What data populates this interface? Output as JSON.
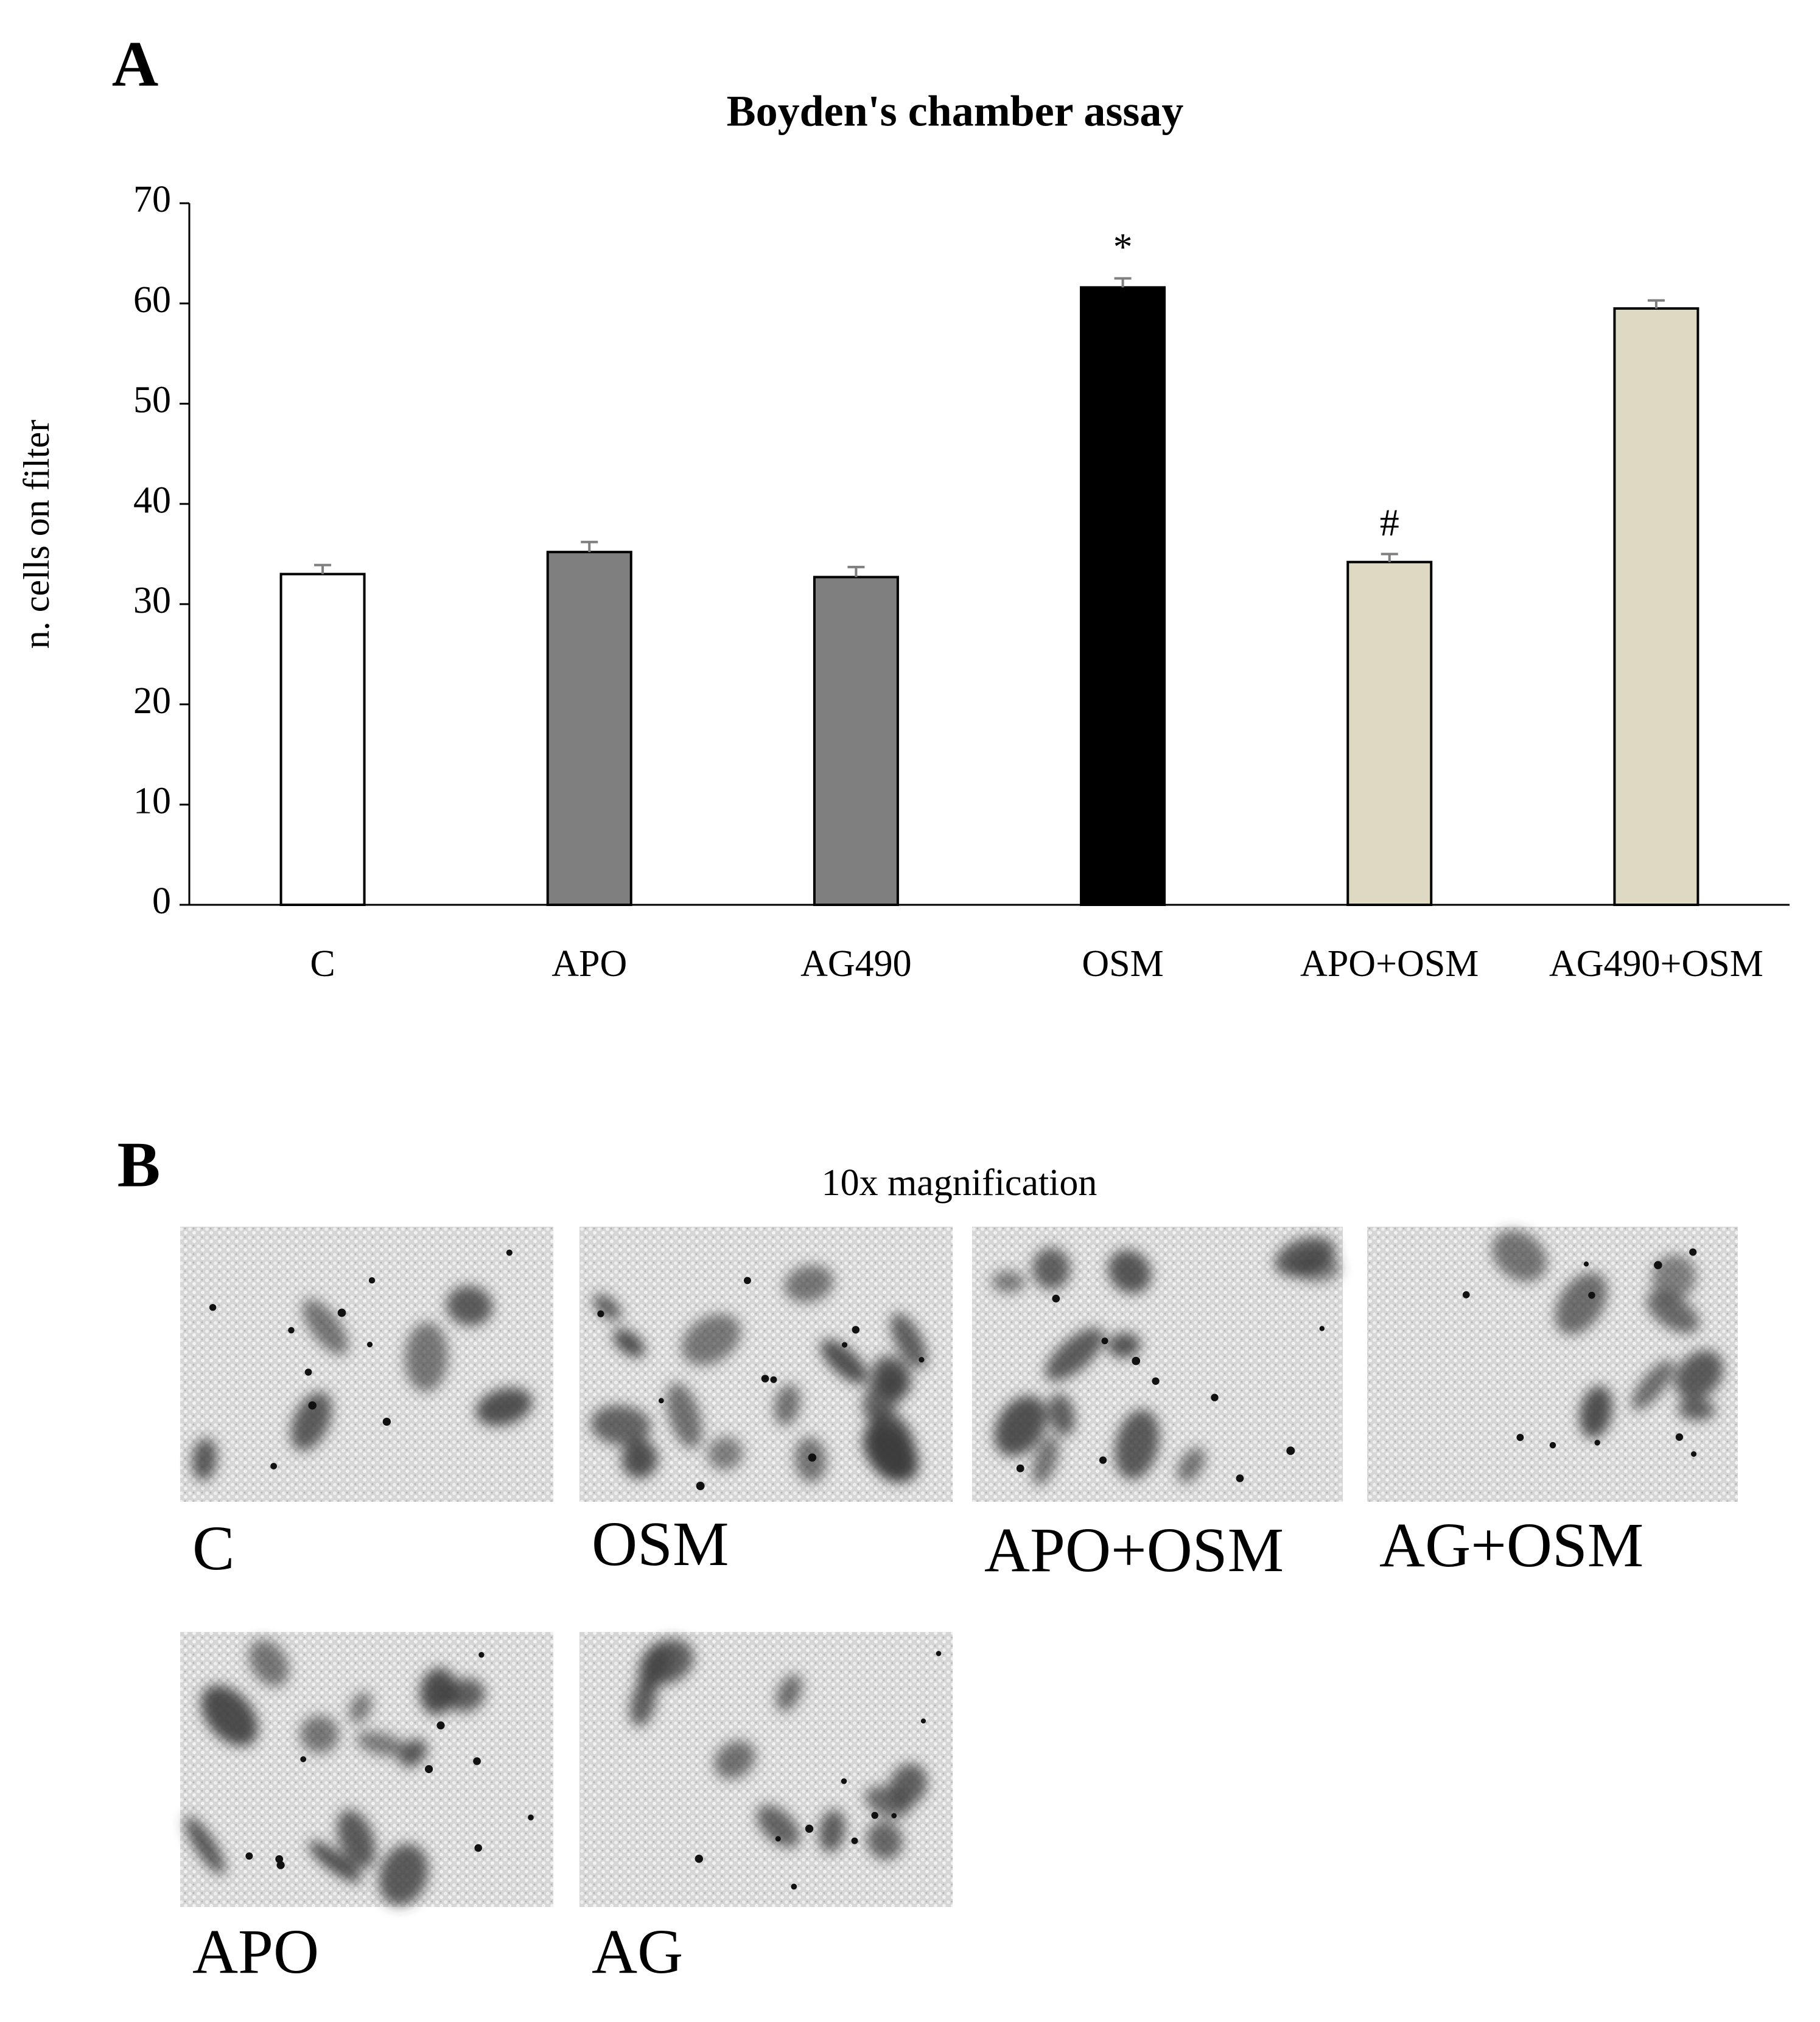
{
  "chart_data": {
    "type": "bar",
    "title": "Boyden's chamber assay",
    "y_label": "n. cells on filter",
    "categories": [
      "C",
      "APO",
      "AG490",
      "OSM",
      "APO+OSM",
      "AG490+OSM"
    ],
    "values": [
      33,
      35.2,
      32.7,
      61.6,
      34.2,
      59.5
    ],
    "errors": [
      0.9,
      1.0,
      1.0,
      0.9,
      0.8,
      0.8
    ],
    "colors": [
      "#ffffff",
      "#7f7f7f",
      "#7f7f7f",
      "#000000",
      "#ddd9c3",
      "#ddd9c3"
    ],
    "value_annotations": [
      null,
      null,
      null,
      "*",
      "#",
      null
    ],
    "ylim": [
      0,
      70
    ],
    "yticks": [
      0,
      10,
      20,
      30,
      40,
      50,
      60,
      70
    ]
  },
  "panel_labels": [
    "A",
    "B"
  ],
  "micrographs": {
    "title": "10x magnification",
    "labels": [
      "C",
      "OSM",
      "APO+OSM",
      "AG+OSM",
      "APO",
      "AG"
    ]
  }
}
